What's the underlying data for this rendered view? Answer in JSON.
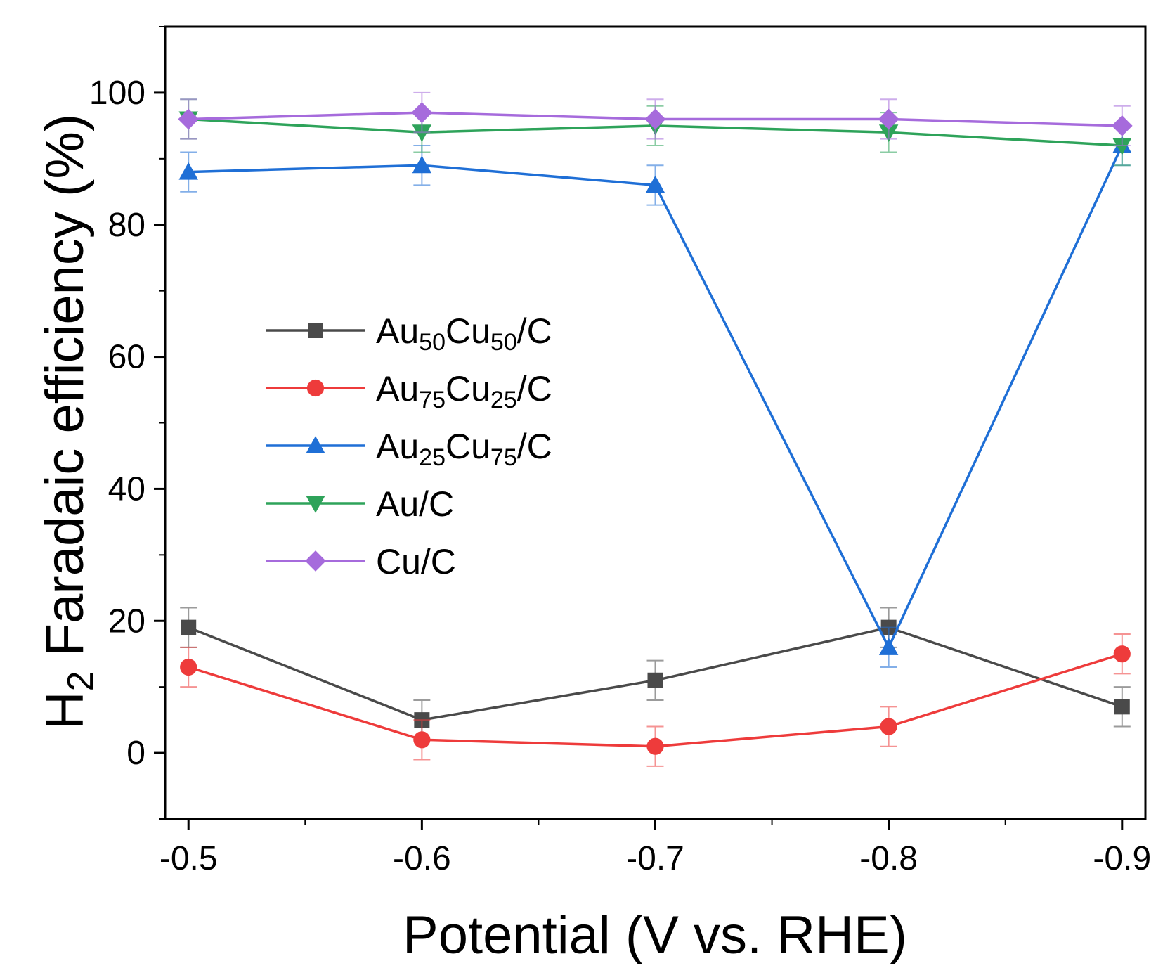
{
  "chart_data": {
    "type": "line",
    "title": "",
    "xlabel": "Potential (V vs. RHE)",
    "ylabel": {
      "main": "H",
      "subscript": "2",
      "rest": " Faradaic efficiency (%)"
    },
    "categories": [
      "-0.5",
      "-0.6",
      "-0.7",
      "-0.8",
      "-0.9"
    ],
    "x": [
      -0.5,
      -0.6,
      -0.7,
      -0.8,
      -0.9
    ],
    "xlim": [
      -0.49,
      -0.91
    ],
    "ylim": [
      -10,
      110
    ],
    "yticks": [
      0,
      20,
      40,
      60,
      80,
      100
    ],
    "yticks_minor": [
      -10,
      10,
      30,
      50,
      70,
      90,
      110
    ],
    "xticks_minor": [
      -0.55,
      -0.65,
      -0.75,
      -0.85
    ],
    "grid": false,
    "legend_position": "center-left",
    "series": [
      {
        "name": "Au50Cu50/C",
        "label": [
          {
            "t": "Au"
          },
          {
            "t": "50",
            "sub": true
          },
          {
            "t": "Cu"
          },
          {
            "t": "50",
            "sub": true
          },
          {
            "t": "/C"
          }
        ],
        "color": "#4a4a4a",
        "marker": "square",
        "values": [
          19,
          5,
          11,
          19,
          7
        ],
        "errors": [
          3,
          3,
          3,
          3,
          3
        ]
      },
      {
        "name": "Au75Cu25/C",
        "label": [
          {
            "t": "Au"
          },
          {
            "t": "75",
            "sub": true
          },
          {
            "t": "Cu"
          },
          {
            "t": "25",
            "sub": true
          },
          {
            "t": "/C"
          }
        ],
        "color": "#ee3b3b",
        "marker": "circle",
        "values": [
          13,
          2,
          1,
          4,
          15
        ],
        "errors": [
          3,
          3,
          3,
          3,
          3
        ]
      },
      {
        "name": "Au25Cu75/C",
        "label": [
          {
            "t": "Au"
          },
          {
            "t": "25",
            "sub": true
          },
          {
            "t": "Cu"
          },
          {
            "t": "75",
            "sub": true
          },
          {
            "t": "/C"
          }
        ],
        "color": "#1f6fd6",
        "marker": "triangle-up",
        "values": [
          88,
          89,
          86,
          16,
          92
        ],
        "errors": [
          3,
          3,
          3,
          3,
          3
        ]
      },
      {
        "name": "Au/C",
        "label": [
          {
            "t": "Au/C"
          }
        ],
        "color": "#2ea35a",
        "marker": "triangle-down",
        "values": [
          96,
          94,
          95,
          94,
          92
        ],
        "errors": [
          3,
          3,
          3,
          3,
          3
        ]
      },
      {
        "name": "Cu/C",
        "label": [
          {
            "t": "Cu/C"
          }
        ],
        "color": "#a66bdc",
        "marker": "diamond",
        "values": [
          96,
          97,
          96,
          96,
          95
        ],
        "errors": [
          3,
          3,
          3,
          3,
          3
        ]
      }
    ]
  }
}
